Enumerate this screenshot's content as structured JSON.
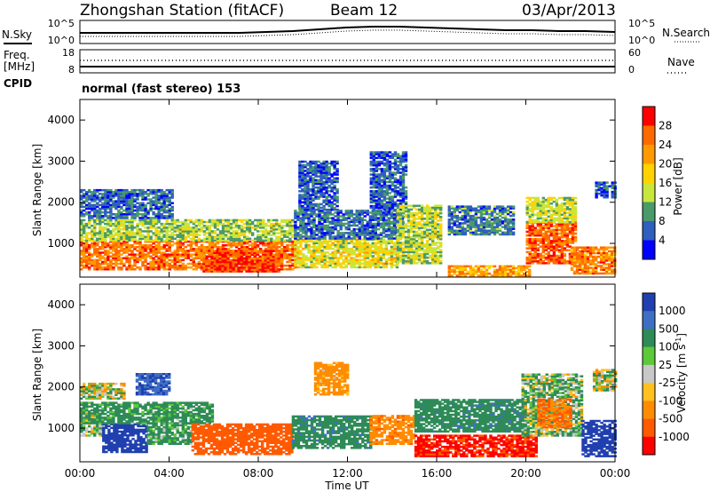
{
  "header": {
    "title": "Zhongshan Station (fitACF)",
    "beam": "Beam 12",
    "date": "03/Apr/2013"
  },
  "nsky_panel": {
    "left_label": "N.Sky",
    "right_label": "N.Search",
    "left_ticks": [
      "10^5",
      "10^0"
    ],
    "right_ticks": [
      "10^5",
      "10^0"
    ]
  },
  "freq_panel": {
    "left_label_1": "Freq.",
    "left_label_2": "[MHz]",
    "left_ticks": [
      "18",
      "8"
    ],
    "right_label": "Nave",
    "right_ticks": [
      "60",
      "0"
    ]
  },
  "cpid": {
    "label": "CPID",
    "value": "normal (fast stereo) 153"
  },
  "x_axis": {
    "label": "Time UT",
    "ticks": [
      "00:00",
      "04:00",
      "08:00",
      "12:00",
      "16:00",
      "20:00",
      "00:00"
    ]
  },
  "power_scale": {
    "title": "Power [dB]",
    "ticks": [
      "28",
      "24",
      "20",
      "16",
      "12",
      "8",
      "4"
    ],
    "colors": [
      "#ff0000",
      "#ff6a00",
      "#ff9a00",
      "#ffd200",
      "#c8e63c",
      "#4a9a6a",
      "#2f5fbf",
      "#0000ff"
    ]
  },
  "velocity_scale": {
    "title": "Velocity [m s",
    "title_sup": "-1",
    "title_end": "]",
    "ticks": [
      "1000",
      "500",
      "100",
      "25",
      "-25",
      "-100",
      "-500",
      "-1000"
    ],
    "colors": [
      "#2040b0",
      "#3f6fc4",
      "#2e8b57",
      "#5cc83a",
      "#c8c8c8",
      "#ffc020",
      "#ff8c00",
      "#ff5a00",
      "#ff0000"
    ]
  },
  "chart_data": [
    {
      "type": "heatmap",
      "title": "",
      "xlabel": "Time UT",
      "ylabel": "Slant Range [km]",
      "colorbar_label": "Power [dB]",
      "xlim": [
        0,
        24
      ],
      "ylim": [
        180,
        4500
      ],
      "yticks": [
        1000,
        2000,
        3000,
        4000
      ],
      "ytick_labels": [
        "1000",
        "2000",
        "3000",
        "4000"
      ],
      "zlim": [
        0,
        32
      ],
      "blobs": [
        {
          "t0": 0.0,
          "t1": 9.6,
          "r0": 350,
          "r1": 1050,
          "v": 25
        },
        {
          "t0": 0.0,
          "t1": 9.6,
          "r0": 1050,
          "r1": 1550,
          "v": 13
        },
        {
          "t0": 0.0,
          "t1": 4.2,
          "r0": 1600,
          "r1": 2300,
          "v": 7
        },
        {
          "t0": 5.5,
          "t1": 9.0,
          "r0": 300,
          "r1": 800,
          "v": 28
        },
        {
          "t0": 9.6,
          "t1": 14.2,
          "r0": 400,
          "r1": 1100,
          "v": 16
        },
        {
          "t0": 9.6,
          "t1": 14.5,
          "r0": 1100,
          "r1": 1800,
          "v": 7
        },
        {
          "t0": 9.8,
          "t1": 11.5,
          "r0": 1800,
          "r1": 3000,
          "v": 6
        },
        {
          "t0": 13.0,
          "t1": 14.6,
          "r0": 1800,
          "r1": 3200,
          "v": 6
        },
        {
          "t0": 14.2,
          "t1": 16.2,
          "r0": 500,
          "r1": 1900,
          "v": 14
        },
        {
          "t0": 16.5,
          "t1": 20.2,
          "r0": 200,
          "r1": 450,
          "v": 22
        },
        {
          "t0": 16.5,
          "t1": 19.5,
          "r0": 1200,
          "r1": 1900,
          "v": 8
        },
        {
          "t0": 20.0,
          "t1": 22.2,
          "r0": 500,
          "r1": 1500,
          "v": 26
        },
        {
          "t0": 20.0,
          "t1": 22.2,
          "r0": 1500,
          "r1": 2100,
          "v": 15
        },
        {
          "t0": 22.0,
          "t1": 24.0,
          "r0": 250,
          "r1": 900,
          "v": 24
        },
        {
          "t0": 23.1,
          "t1": 24.0,
          "r0": 2100,
          "r1": 2500,
          "v": 5
        }
      ]
    },
    {
      "type": "heatmap",
      "title": "",
      "xlabel": "Time UT",
      "ylabel": "Slant Range [km]",
      "colorbar_label": "Velocity [m s-1]",
      "xlim": [
        0,
        24
      ],
      "ylim": [
        180,
        4500
      ],
      "yticks": [
        1000,
        2000,
        3000,
        4000
      ],
      "ytick_labels": [
        "1000",
        "2000",
        "3000",
        "4000"
      ],
      "zlim": [
        -1200,
        1200
      ],
      "blobs": [
        {
          "t0": 0.0,
          "t1": 1.0,
          "r0": 800,
          "r1": 1400,
          "v": 50
        },
        {
          "t0": 1.0,
          "t1": 3.0,
          "r0": 400,
          "r1": 1100,
          "v": 900
        },
        {
          "t0": 0.0,
          "t1": 6.0,
          "r0": 1100,
          "r1": 1600,
          "v": 150
        },
        {
          "t0": 0.0,
          "t1": 2.0,
          "r0": 1700,
          "r1": 2100,
          "v": 0
        },
        {
          "t0": 2.5,
          "t1": 4.0,
          "r0": 1800,
          "r1": 2300,
          "v": 700
        },
        {
          "t0": 3.0,
          "t1": 5.0,
          "r0": 600,
          "r1": 1100,
          "v": 120
        },
        {
          "t0": 5.0,
          "t1": 9.5,
          "r0": 350,
          "r1": 1100,
          "v": -600
        },
        {
          "t0": 9.5,
          "t1": 13.0,
          "r0": 500,
          "r1": 1300,
          "v": 200
        },
        {
          "t0": 10.5,
          "t1": 12.0,
          "r0": 1800,
          "r1": 2600,
          "v": -150
        },
        {
          "t0": 13.0,
          "t1": 15.0,
          "r0": 600,
          "r1": 1300,
          "v": -200
        },
        {
          "t0": 15.0,
          "t1": 20.5,
          "r0": 300,
          "r1": 800,
          "v": -800
        },
        {
          "t0": 15.0,
          "t1": 20.0,
          "r0": 900,
          "r1": 1700,
          "v": 200
        },
        {
          "t0": 19.8,
          "t1": 22.5,
          "r0": 800,
          "r1": 2300,
          "v": 60
        },
        {
          "t0": 20.5,
          "t1": 22.0,
          "r0": 1000,
          "r1": 1700,
          "v": -300
        },
        {
          "t0": 22.5,
          "t1": 24.0,
          "r0": 300,
          "r1": 1200,
          "v": 900
        },
        {
          "t0": 23.0,
          "t1": 24.0,
          "r0": 1900,
          "r1": 2400,
          "v": 0
        }
      ]
    }
  ]
}
